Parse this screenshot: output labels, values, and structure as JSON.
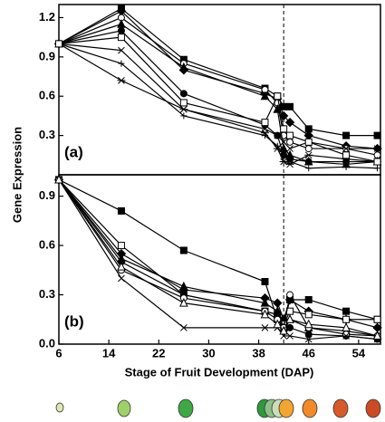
{
  "ylabel": "Gene Expression",
  "xlabel": "Stage of Fruit Development (DAP)",
  "chart_data": [
    {
      "type": "line",
      "annotation": "(a)",
      "x": [
        6,
        16,
        26,
        39,
        41,
        42,
        43,
        46,
        52,
        57
      ],
      "xlim": [
        6,
        57.5
      ],
      "ylim": [
        0,
        1.3
      ],
      "yticks": [
        0.3,
        0.6,
        0.9,
        1.2
      ],
      "reference_x": 42,
      "color": "#000000",
      "series": [
        {
          "marker": "square",
          "values": [
            1,
            1.27,
            0.88,
            0.66,
            0.6,
            0.52,
            0.52,
            0.35,
            0.3,
            0.3
          ]
        },
        {
          "marker": "diamond",
          "values": [
            1,
            1.25,
            0.8,
            0.62,
            0.58,
            0.45,
            0.4,
            0.3,
            0.22,
            0.2
          ]
        },
        {
          "marker": "open-circle",
          "values": [
            1,
            1.2,
            0.85,
            0.65,
            0.55,
            0.3,
            0.25,
            0.2,
            0.2,
            0.15
          ]
        },
        {
          "marker": "triangle",
          "values": [
            1,
            1.15,
            0.82,
            0.6,
            0.5,
            0.2,
            0.15,
            0.1,
            0.08,
            0.1
          ]
        },
        {
          "marker": "circle",
          "values": [
            1,
            1.1,
            0.62,
            0.38,
            0.3,
            0.15,
            0.12,
            0.1,
            0.1,
            0.1
          ]
        },
        {
          "marker": "x",
          "values": [
            1,
            0.95,
            0.5,
            0.35,
            0.3,
            0.25,
            0.2,
            0.25,
            0.2,
            0.2
          ]
        },
        {
          "marker": "plus",
          "values": [
            1,
            0.85,
            0.45,
            0.3,
            0.22,
            0.15,
            0.1,
            0.05,
            0.06,
            0.05
          ]
        },
        {
          "marker": "asterisk",
          "values": [
            1,
            0.72,
            0.5,
            0.32,
            0.2,
            0.1,
            0.08,
            0.15,
            0.12,
            0.1
          ]
        },
        {
          "marker": "open-square",
          "values": [
            1,
            1.05,
            0.55,
            0.4,
            0.6,
            0.35,
            0.3,
            0.25,
            0.15,
            0.1
          ]
        }
      ]
    },
    {
      "type": "line",
      "annotation": "(b)",
      "x": [
        6,
        16,
        26,
        39,
        41,
        42,
        43,
        46,
        52,
        57
      ],
      "xlim": [
        6,
        57.5
      ],
      "xticks": [
        6,
        14,
        22,
        30,
        38,
        46,
        54
      ],
      "ylim": [
        0,
        1.03
      ],
      "yticks": [
        {
          "value": 0,
          "label": "0.0"
        },
        0.3,
        0.6,
        0.9
      ],
      "reference_x": 42,
      "color": "#000000",
      "series": [
        {
          "marker": "square",
          "values": [
            1,
            0.81,
            0.57,
            0.38,
            0.15,
            0.12,
            0.27,
            0.27,
            0.2,
            0.15
          ]
        },
        {
          "marker": "diamond",
          "values": [
            1,
            0.55,
            0.33,
            0.28,
            0.25,
            0.15,
            0.27,
            0.2,
            0.15,
            0.1
          ]
        },
        {
          "marker": "open-square",
          "values": [
            1,
            0.6,
            0.3,
            0.2,
            0.18,
            0.12,
            0.2,
            0.18,
            0.15,
            0.15
          ]
        },
        {
          "marker": "triangle",
          "values": [
            1,
            0.52,
            0.35,
            0.25,
            0.2,
            0.1,
            0.15,
            0.1,
            0.08,
            0.05
          ]
        },
        {
          "marker": "circle",
          "values": [
            1,
            0.5,
            0.3,
            0.2,
            0.18,
            0.08,
            0.1,
            0.06,
            0.05,
            0.03
          ]
        },
        {
          "marker": "open-circle",
          "values": [
            1,
            0.45,
            0.28,
            0.2,
            0.15,
            0.1,
            0.3,
            0.1,
            0.06,
            0.05
          ]
        },
        {
          "marker": "x",
          "values": [
            1,
            0.4,
            0.1,
            0.1,
            0.1,
            0.05,
            0.05,
            0.03,
            0.05,
            0.03
          ]
        },
        {
          "marker": "open-triangle",
          "values": [
            1,
            0.47,
            0.25,
            0.18,
            0.12,
            0.08,
            0.15,
            0.12,
            0.1,
            0.05
          ]
        }
      ]
    }
  ]
}
